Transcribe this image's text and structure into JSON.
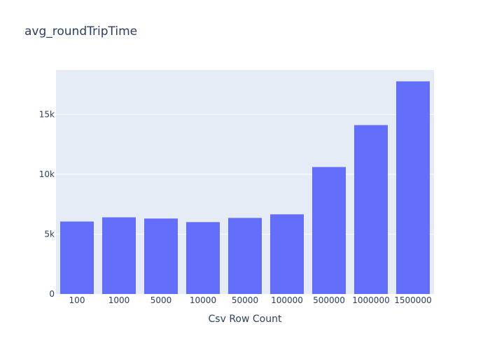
{
  "chart_data": {
    "type": "bar",
    "title": "avg_roundTripTime",
    "xlabel": "Csv Row Count",
    "ylabel": "",
    "categories": [
      "100",
      "1000",
      "5000",
      "10000",
      "50000",
      "100000",
      "500000",
      "1000000",
      "1500000"
    ],
    "values": [
      6050,
      6400,
      6300,
      6000,
      6350,
      6650,
      10600,
      14100,
      17750
    ],
    "ylim": [
      0,
      18700
    ],
    "yticks": [
      0,
      5000,
      10000,
      15000
    ],
    "ytick_labels": [
      "0",
      "5k",
      "10k",
      "15k"
    ],
    "grid": true,
    "colors": {
      "bar": "#636efa",
      "plot_bg": "#e5ecf6",
      "grid": "#ffffff",
      "text": "#2a3f5f"
    }
  }
}
